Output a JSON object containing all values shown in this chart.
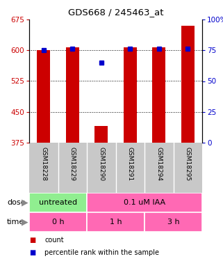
{
  "title": "GDS668 / 245463_at",
  "samples": [
    "GSM18228",
    "GSM18229",
    "GSM18290",
    "GSM18291",
    "GSM18294",
    "GSM18295"
  ],
  "bar_values": [
    600,
    608,
    415,
    607,
    608,
    660
  ],
  "dot_values": [
    75,
    76,
    65,
    76,
    76,
    76
  ],
  "ylim_left": [
    375,
    675
  ],
  "ylim_right": [
    0,
    100
  ],
  "yticks_left": [
    375,
    450,
    525,
    600,
    675
  ],
  "yticks_right": [
    0,
    25,
    50,
    75,
    100
  ],
  "bar_color": "#cc0000",
  "dot_color": "#0000cc",
  "bar_bottom": 375,
  "grid_color": "black",
  "dose_color_untreated": "#90ee90",
  "dose_color_treated": "#ff69b4",
  "time_color": "#ff69b4",
  "tick_label_color_left": "#cc0000",
  "tick_label_color_right": "#0000cc",
  "background_color": "#ffffff",
  "plot_bg_color": "#ffffff",
  "sample_bg_color": "#c8c8c8"
}
